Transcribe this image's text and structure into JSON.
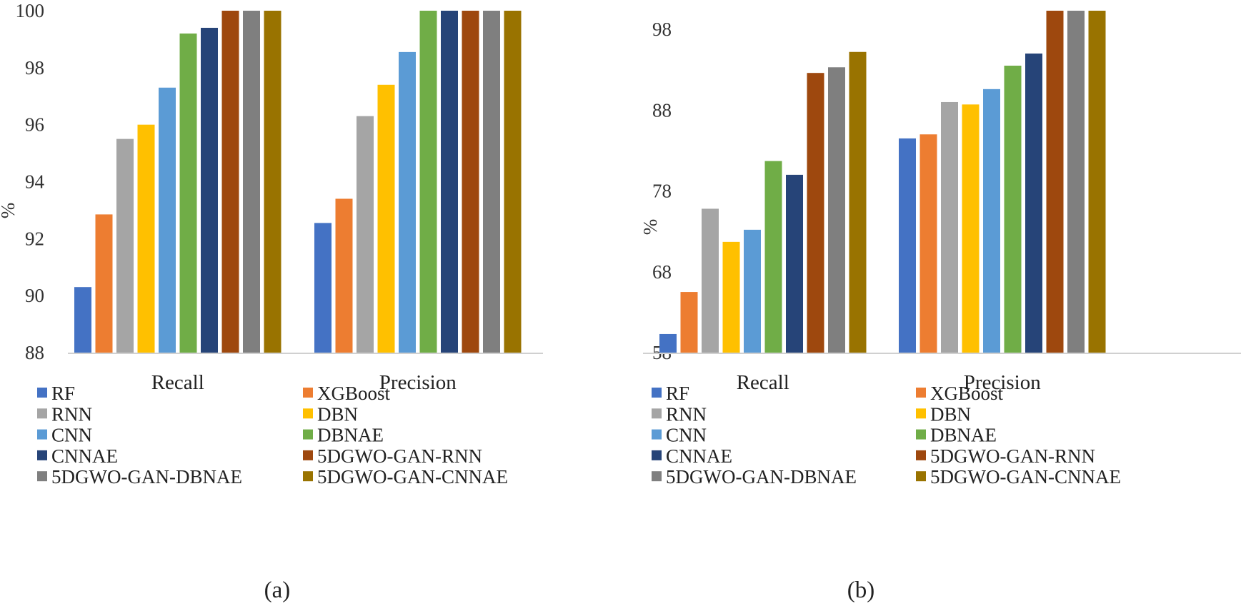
{
  "chart_data": [
    {
      "type": "bar",
      "panel": "a",
      "caption": "(a)",
      "ylabel": "%",
      "ylim": [
        88,
        100
      ],
      "yticks": [
        "88",
        "90",
        "92",
        "94",
        "96",
        "98",
        "100"
      ],
      "categories": [
        "Recall",
        "Precision"
      ],
      "series": [
        {
          "name": "RF",
          "values": [
            90.3,
            92.55
          ]
        },
        {
          "name": "XGBoost",
          "values": [
            92.85,
            93.4
          ]
        },
        {
          "name": "RNN",
          "values": [
            95.5,
            96.3
          ]
        },
        {
          "name": "DBN",
          "values": [
            96.0,
            97.4
          ]
        },
        {
          "name": "CNN",
          "values": [
            97.3,
            98.55
          ]
        },
        {
          "name": "DBNAE",
          "values": [
            99.2,
            100
          ]
        },
        {
          "name": "CNNAE",
          "values": [
            99.4,
            100
          ]
        },
        {
          "name": "5DGWO-GAN-RNN",
          "values": [
            100,
            100
          ]
        },
        {
          "name": "5DGWO-GAN-DBNAE",
          "values": [
            100,
            100
          ]
        },
        {
          "name": "5DGWO-GAN-CNNAE",
          "values": [
            100,
            100
          ]
        }
      ]
    },
    {
      "type": "bar",
      "panel": "b",
      "caption": "(b)",
      "ylabel": "%",
      "ylim": [
        58,
        100.3
      ],
      "yticks": [
        "58",
        "68",
        "78",
        "88",
        "98"
      ],
      "categories": [
        "Recall",
        "Precision"
      ],
      "series": [
        {
          "name": "RF",
          "values": [
            60.3,
            84.5
          ]
        },
        {
          "name": "XGBoost",
          "values": [
            65.5,
            85.0
          ]
        },
        {
          "name": "RNN",
          "values": [
            75.8,
            89.0
          ]
        },
        {
          "name": "DBN",
          "values": [
            71.7,
            88.7
          ]
        },
        {
          "name": "CNN",
          "values": [
            73.2,
            90.6
          ]
        },
        {
          "name": "DBNAE",
          "values": [
            81.7,
            93.5
          ]
        },
        {
          "name": "CNNAE",
          "values": [
            80.0,
            95.0
          ]
        },
        {
          "name": "5DGWO-GAN-RNN",
          "values": [
            92.6,
            100.3
          ]
        },
        {
          "name": "5DGWO-GAN-DBNAE",
          "values": [
            93.3,
            100.3
          ]
        },
        {
          "name": "5DGWO-GAN-CNNAE",
          "values": [
            95.2,
            100.3
          ]
        }
      ]
    }
  ],
  "colors": [
    "#4472C4",
    "#ED7D31",
    "#A5A5A5",
    "#FFC000",
    "#5B9BD5",
    "#70AD47",
    "#264478",
    "#9E480E",
    "#7F7F7F",
    "#997300"
  ]
}
